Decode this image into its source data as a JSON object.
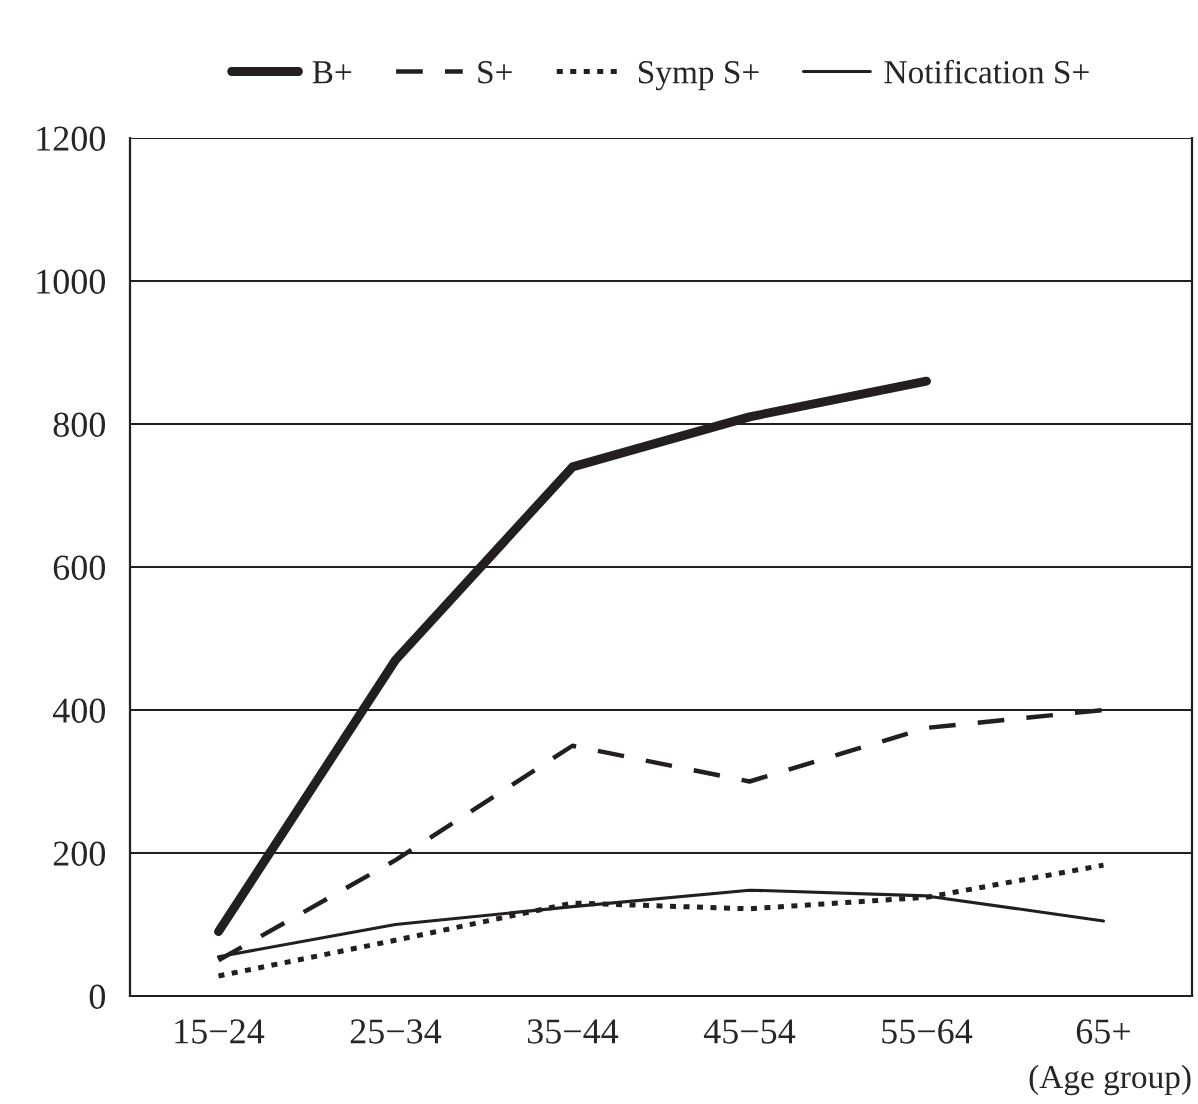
{
  "chart_data": {
    "type": "line",
    "xlabel": "(Age group)",
    "categories": [
      "15−24",
      "25−34",
      "35−44",
      "45−54",
      "55−64",
      "65+"
    ],
    "series": [
      {
        "name": "B+",
        "color": "#231f20",
        "line_style": "solid",
        "values": [
          90,
          470,
          740,
          810,
          860,
          null
        ]
      },
      {
        "name": "S+",
        "color": "#231f20",
        "line_style": "dashed",
        "values": [
          50,
          190,
          350,
          300,
          375,
          400
        ]
      },
      {
        "name": "Symp S+",
        "color": "#231f20",
        "line_style": "dotted",
        "values": [
          28,
          78,
          130,
          122,
          138,
          183
        ]
      },
      {
        "name": "Notification S+",
        "color": "#231f20",
        "line_style": "solid",
        "values": [
          55,
          100,
          125,
          148,
          140,
          105
        ]
      }
    ],
    "ylim": [
      0,
      1200
    ],
    "yticks": [
      0,
      200,
      400,
      600,
      800,
      1000,
      1200
    ],
    "grid": "y",
    "legend": "top",
    "marker": "none"
  }
}
